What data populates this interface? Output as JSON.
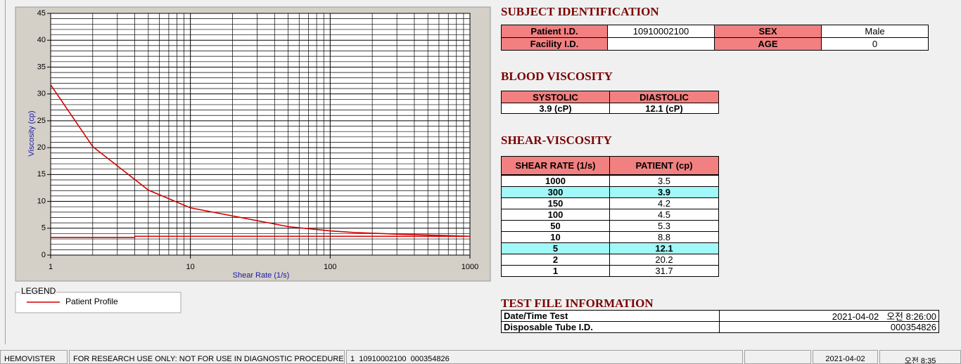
{
  "chart_data": {
    "type": "line",
    "x_label": "Shear Rate (1/s)",
    "y_label": "Viscosity (cp)",
    "xscale": "log",
    "xlim": [
      1,
      1000
    ],
    "xticks": [
      1,
      10,
      100,
      1000
    ],
    "ylim": [
      0,
      45
    ],
    "yticks": [
      0,
      5,
      10,
      15,
      20,
      25,
      30,
      35,
      40,
      45
    ],
    "grid": true,
    "legend_title": "LEGEND",
    "series": [
      {
        "name": "Patient Profile",
        "color": "#d40000",
        "x": [
          1,
          2,
          5,
          10,
          50,
          100,
          150,
          300,
          1000
        ],
        "values": [
          31.7,
          20.2,
          12.1,
          8.8,
          5.3,
          4.5,
          4.2,
          3.9,
          3.5
        ]
      },
      {
        "color": "#d40000",
        "x": [
          1,
          4,
          4,
          1000
        ],
        "values": [
          3.3,
          3.3,
          3.5,
          3.5
        ]
      }
    ]
  },
  "subject_identification": {
    "title": "SUBJECT IDENTIFICATION",
    "fields": [
      {
        "label": "Patient I.D.",
        "value": "10910002100"
      },
      {
        "label": "SEX",
        "value": "Male"
      },
      {
        "label": "Facility I.D."
      },
      {
        "label": "AGE",
        "value": "0"
      }
    ]
  },
  "blood_viscosity": {
    "title": "BLOOD VISCOSITY",
    "columns": [
      "SYSTOLIC",
      "DIASTOLIC"
    ],
    "values": [
      "3.9 (cP)",
      "12.1 (cP)"
    ]
  },
  "shear_viscosity": {
    "title": "SHEAR-VISCOSITY",
    "columns": [
      "SHEAR RATE (1/s)",
      "PATIENT (cp)"
    ],
    "rows": [
      [
        "1000",
        "3.5"
      ],
      [
        "300",
        "3.9"
      ],
      [
        "150",
        "4.2"
      ],
      [
        "100",
        "4.5"
      ],
      [
        "50",
        "5.3"
      ],
      [
        "10",
        "8.8"
      ],
      [
        "5",
        "12.1"
      ],
      [
        "2",
        "20.2"
      ],
      [
        "1",
        "31.7"
      ]
    ]
  },
  "test_file_information": {
    "title": "TEST FILE INFORMATION",
    "rows": [
      [
        "Date/Time Test",
        "2021-04-02   오전 8:26:00"
      ],
      [
        "Disposable Tube I.D.",
        "000354826"
      ]
    ]
  },
  "status_bar": {
    "panes": [
      "HEMOVISTER",
      "FOR RESEARCH USE ONLY: NOT FOR USE IN DIAGNOSTIC PROCEDURES",
      "1  10910002100  000354826",
      "2021-04-02",
      "오전 8:35"
    ]
  }
}
